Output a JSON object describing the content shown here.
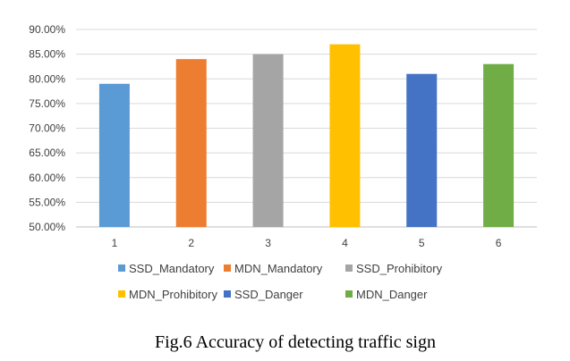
{
  "chart_data": {
    "type": "bar",
    "categories": [
      "1",
      "2",
      "3",
      "4",
      "5",
      "6"
    ],
    "values": [
      0.79,
      0.84,
      0.85,
      0.87,
      0.81,
      0.83
    ],
    "colors": [
      "#5b9bd5",
      "#ed7d31",
      "#a5a5a5",
      "#ffc000",
      "#4472c4",
      "#70ad47"
    ],
    "ylim": [
      0.5,
      0.9
    ],
    "yticks": [
      "50.00%",
      "55.00%",
      "60.00%",
      "65.00%",
      "70.00%",
      "75.00%",
      "80.00%",
      "85.00%",
      "90.00%"
    ],
    "grid": true,
    "legend": {
      "placement": "bottom",
      "entries": [
        "SSD_Mandatory",
        "MDN_Mandatory",
        "SSD_Prohibitory",
        "MDN_Prohibitory",
        "SSD_Danger",
        "MDN_Danger"
      ]
    },
    "caption": "Fig.6 Accuracy of detecting traffic sign"
  }
}
